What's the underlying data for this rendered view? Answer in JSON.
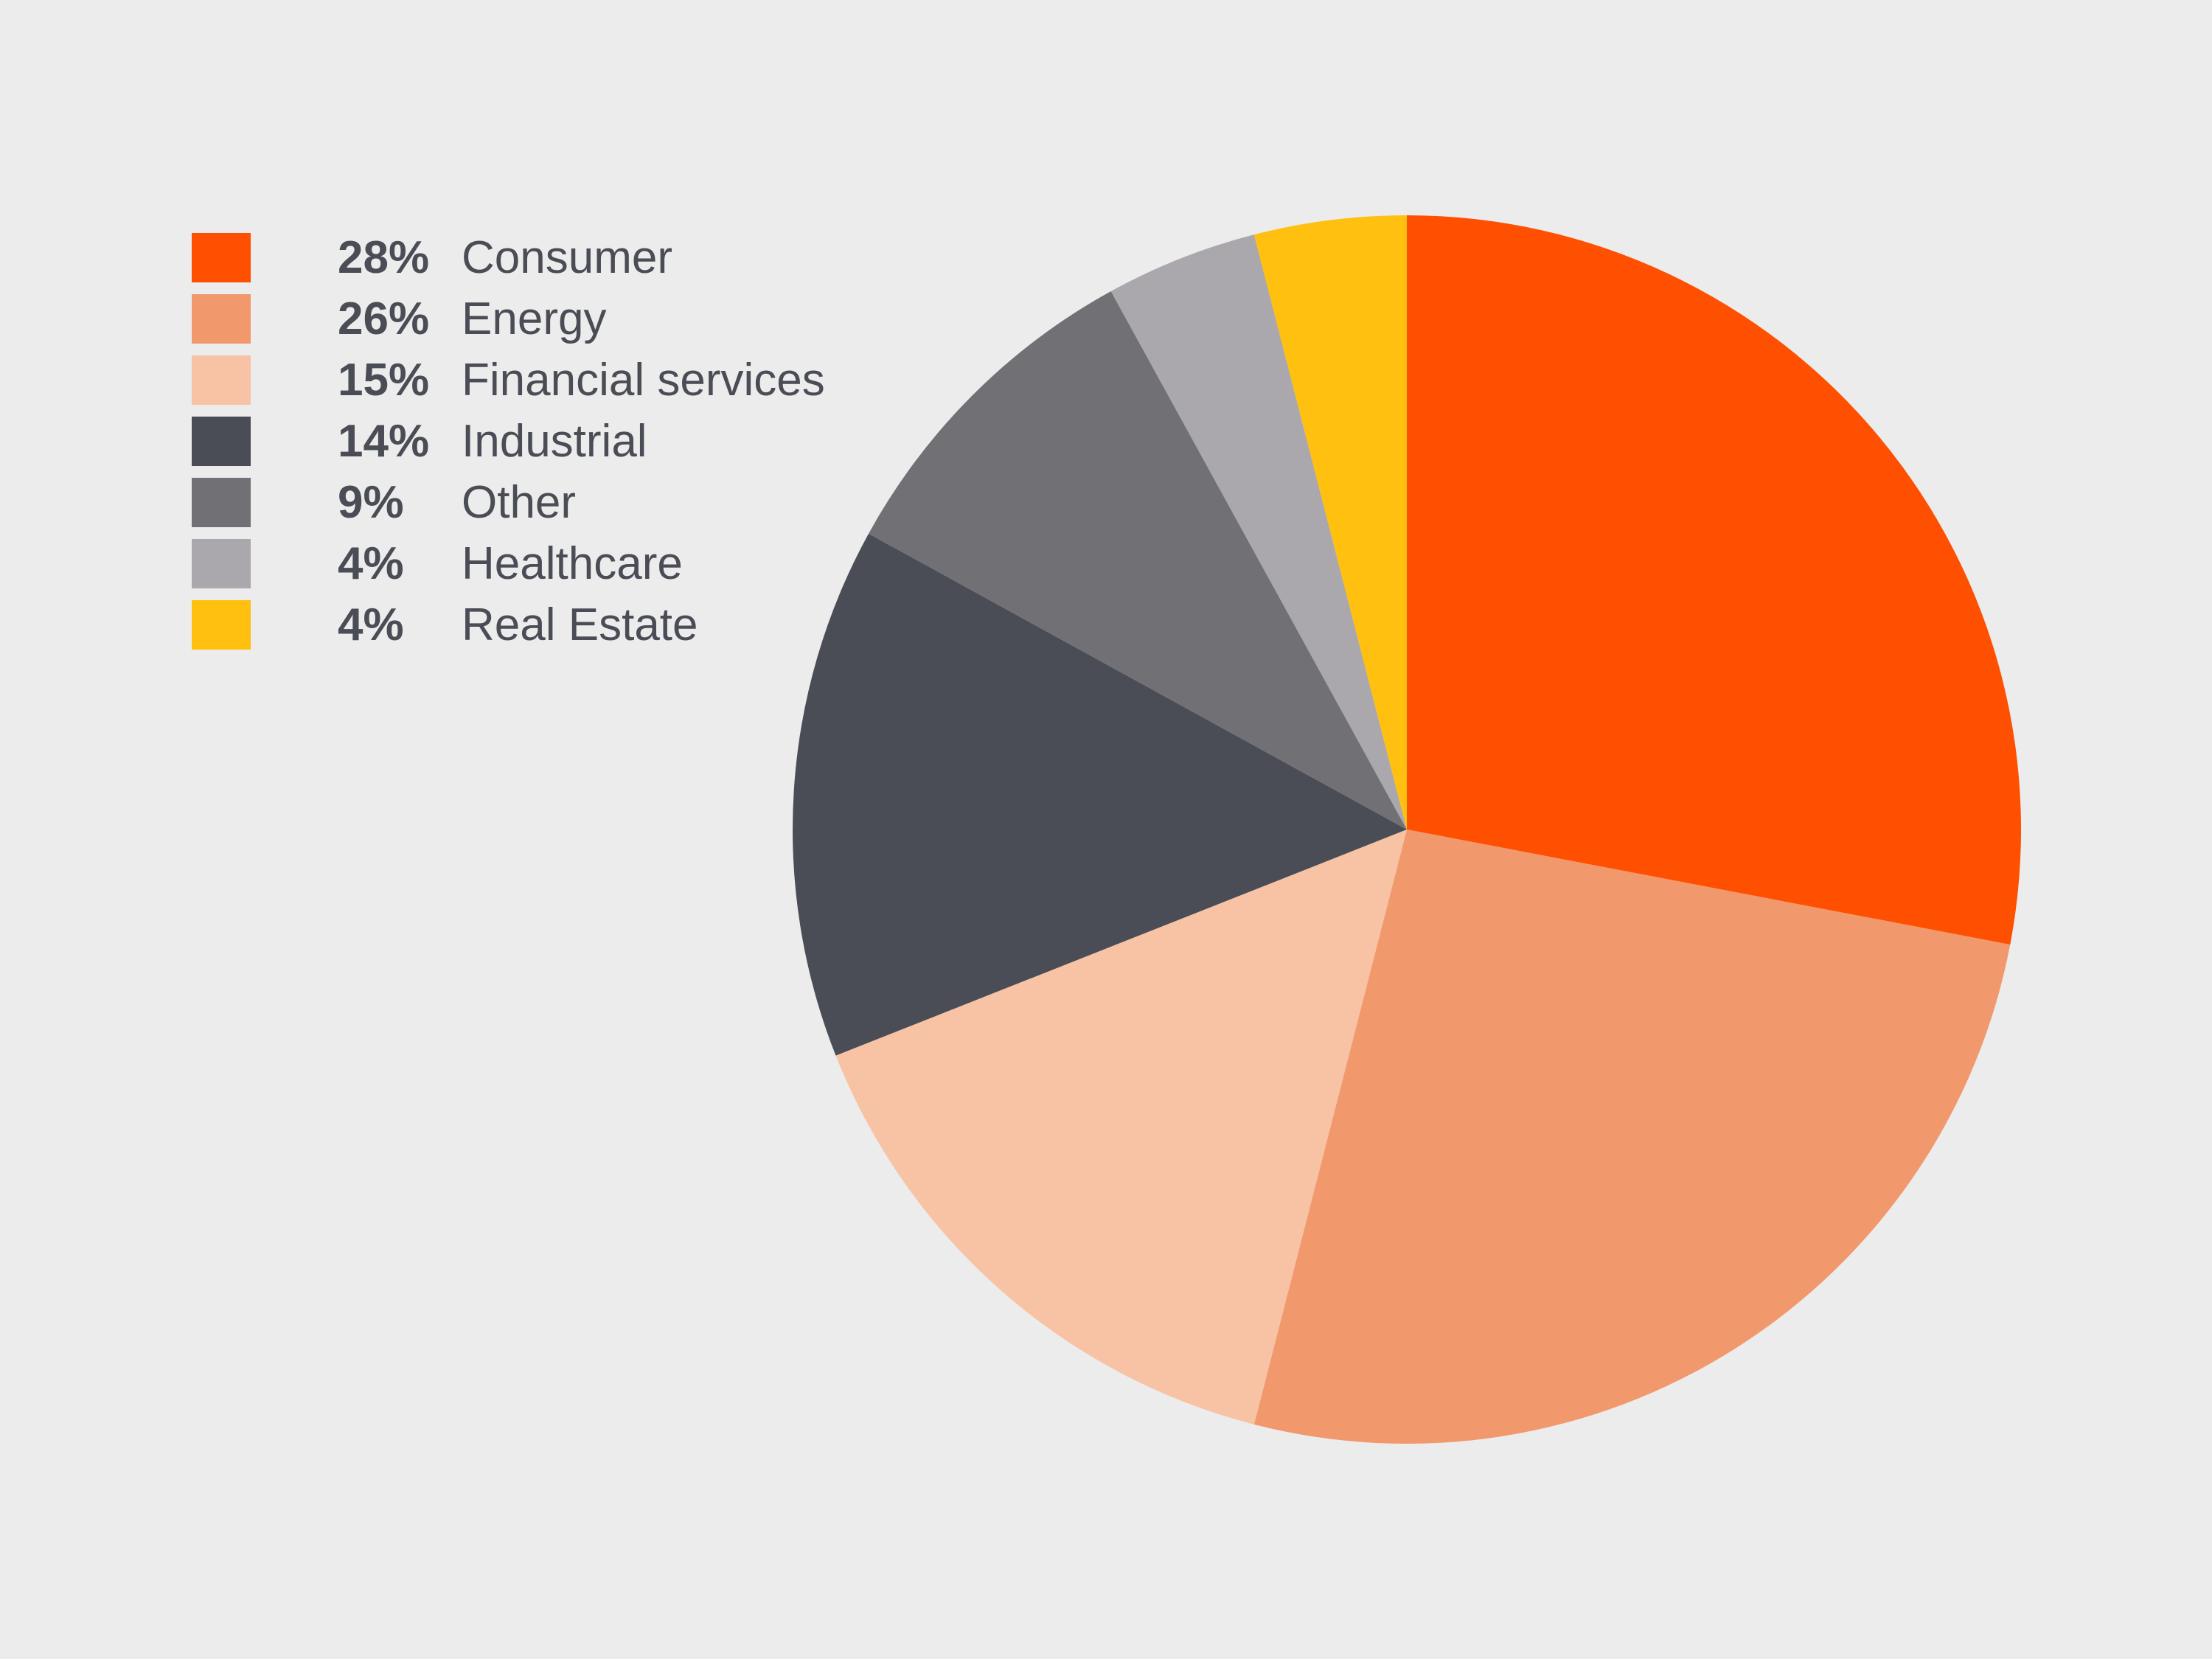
{
  "chart_data": {
    "type": "pie",
    "title": "",
    "start": "top",
    "direction": "clockwise",
    "legend_position": "left",
    "slices": [
      {
        "label": "Consumer",
        "pct_text": "28%",
        "value": 28,
        "color": "#fe5000"
      },
      {
        "label": "Energy",
        "pct_text": "26%",
        "value": 26,
        "color": "#f1986d"
      },
      {
        "label": "Financial services",
        "pct_text": "15%",
        "value": 15,
        "color": "#f7c3a4"
      },
      {
        "label": "Industrial",
        "pct_text": "14%",
        "value": 14,
        "color": "#4a4d55"
      },
      {
        "label": "Other",
        "pct_text": "9%",
        "value": 9,
        "color": "#717075"
      },
      {
        "label": "Healthcare",
        "pct_text": "4%",
        "value": 4,
        "color": "#aaa8ac"
      },
      {
        "label": "Real Estate",
        "pct_text": "4%",
        "value": 4,
        "color": "#ffc010"
      }
    ]
  }
}
